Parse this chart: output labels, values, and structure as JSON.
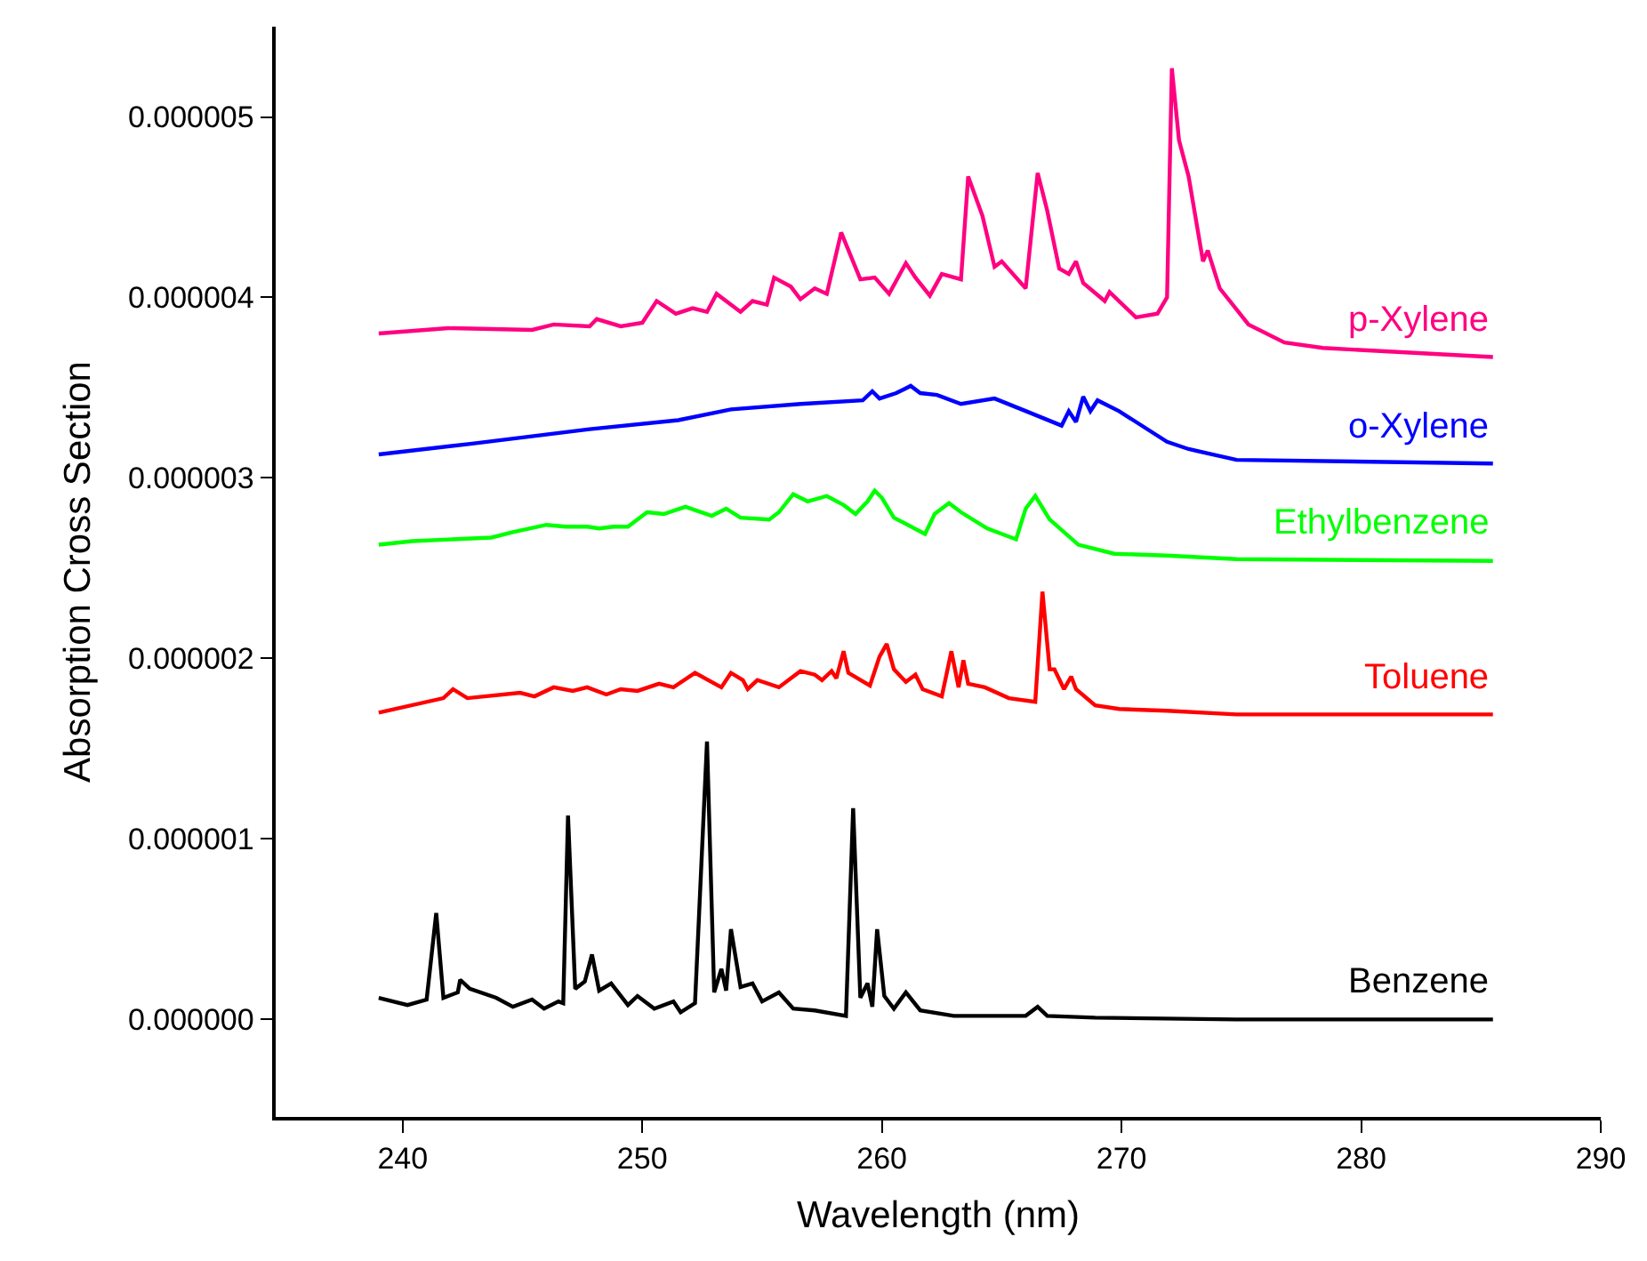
{
  "chart_data": {
    "type": "line",
    "xlabel": "Wavelength (nm)",
    "ylabel": "Absorption Cross Section",
    "xlim": [
      234.7,
      290
    ],
    "xticks": [
      240,
      250,
      260,
      270,
      280,
      290
    ],
    "ylim": [
      -5.4e-07,
      5.5e-06
    ],
    "yticks": [
      {
        "value": 0,
        "label": "0.000000"
      },
      {
        "value": 1e-06,
        "label": "0.000001"
      },
      {
        "value": 2e-06,
        "label": "0.000002"
      },
      {
        "value": 3e-06,
        "label": "0.000003"
      },
      {
        "value": 4e-06,
        "label": "0.000004"
      },
      {
        "value": 5e-06,
        "label": "0.000005"
      }
    ],
    "legend": false,
    "marker": "none",
    "line_style": "solid",
    "series": [
      {
        "name": "p-Xylene",
        "color": "#ff0080",
        "x": [
          239.0,
          241.9,
          245.4,
          246.3,
          247.8,
          248.1,
          249.1,
          250.0,
          250.6,
          251.4,
          252.1,
          252.7,
          253.1,
          254.1,
          254.6,
          255.2,
          255.5,
          256.2,
          256.6,
          257.2,
          257.7,
          258.3,
          259.1,
          259.7,
          260.3,
          261.0,
          261.4,
          262.0,
          262.5,
          263.3,
          263.6,
          264.2,
          264.7,
          265.0,
          266.0,
          266.5,
          266.9,
          267.4,
          267.8,
          268.1,
          268.4,
          269.3,
          269.5,
          270.6,
          271.5,
          271.9,
          272.1,
          272.4,
          272.8,
          273.4,
          273.6,
          274.1,
          275.3,
          276.8,
          278.4,
          285.5
        ],
        "values": [
          3.8e-06,
          3.83e-06,
          3.82e-06,
          3.85e-06,
          3.84e-06,
          3.88e-06,
          3.84e-06,
          3.86e-06,
          3.98e-06,
          3.91e-06,
          3.94e-06,
          3.92e-06,
          4.02e-06,
          3.92e-06,
          3.98e-06,
          3.96e-06,
          4.11e-06,
          4.06e-06,
          3.99e-06,
          4.05e-06,
          4.02e-06,
          4.36e-06,
          4.1e-06,
          4.11e-06,
          4.02e-06,
          4.19e-06,
          4.11e-06,
          4.01e-06,
          4.13e-06,
          4.1e-06,
          4.67e-06,
          4.45e-06,
          4.17e-06,
          4.2e-06,
          4.05e-06,
          4.69e-06,
          4.48e-06,
          4.16e-06,
          4.13e-06,
          4.2e-06,
          4.08e-06,
          3.98e-06,
          4.03e-06,
          3.89e-06,
          3.91e-06,
          4e-06,
          5.27e-06,
          4.87e-06,
          4.67e-06,
          4.2e-06,
          4.26e-06,
          4.05e-06,
          3.85e-06,
          3.75e-06,
          3.72e-06,
          3.67e-06
        ]
      },
      {
        "name": "o-Xylene",
        "color": "#0000ff",
        "x": [
          239.0,
          242.9,
          247.8,
          251.5,
          253.7,
          256.6,
          259.2,
          259.6,
          259.9,
          260.6,
          261.2,
          261.6,
          262.3,
          263.3,
          264.7,
          266.2,
          267.5,
          267.8,
          268.1,
          268.4,
          268.7,
          269.0,
          269.9,
          271.9,
          272.8,
          274.8,
          285.5
        ],
        "values": [
          3.13e-06,
          3.19e-06,
          3.27e-06,
          3.32e-06,
          3.38e-06,
          3.41e-06,
          3.43e-06,
          3.48e-06,
          3.44e-06,
          3.47e-06,
          3.51e-06,
          3.47e-06,
          3.46e-06,
          3.41e-06,
          3.44e-06,
          3.36e-06,
          3.29e-06,
          3.37e-06,
          3.31e-06,
          3.45e-06,
          3.37e-06,
          3.43e-06,
          3.37e-06,
          3.2e-06,
          3.16e-06,
          3.1e-06,
          3.08e-06
        ]
      },
      {
        "name": "Ethylbenzene",
        "color": "#00ff00",
        "x": [
          239.0,
          240.4,
          243.7,
          244.6,
          246.0,
          246.8,
          247.7,
          248.2,
          248.8,
          249.4,
          250.2,
          250.9,
          251.8,
          252.9,
          253.5,
          254.1,
          255.3,
          255.7,
          256.3,
          256.9,
          257.7,
          258.4,
          258.9,
          259.4,
          259.7,
          260.0,
          260.5,
          261.8,
          262.2,
          262.8,
          263.3,
          264.4,
          265.6,
          266.0,
          266.4,
          267.0,
          268.2,
          269.7,
          271.9,
          274.8,
          285.5
        ],
        "values": [
          2.63e-06,
          2.65e-06,
          2.67e-06,
          2.7e-06,
          2.74e-06,
          2.73e-06,
          2.73e-06,
          2.72e-06,
          2.73e-06,
          2.73e-06,
          2.81e-06,
          2.8e-06,
          2.84e-06,
          2.79e-06,
          2.83e-06,
          2.78e-06,
          2.77e-06,
          2.81e-06,
          2.91e-06,
          2.87e-06,
          2.9e-06,
          2.85e-06,
          2.8e-06,
          2.87e-06,
          2.93e-06,
          2.89e-06,
          2.78e-06,
          2.69e-06,
          2.8e-06,
          2.86e-06,
          2.81e-06,
          2.72e-06,
          2.66e-06,
          2.83e-06,
          2.9e-06,
          2.77e-06,
          2.63e-06,
          2.58e-06,
          2.57e-06,
          2.55e-06,
          2.54e-06
        ]
      },
      {
        "name": "Toluene",
        "color": "#ff0000",
        "x": [
          239.0,
          241.7,
          242.1,
          242.7,
          244.9,
          245.5,
          246.3,
          247.1,
          247.7,
          248.5,
          249.1,
          249.8,
          250.7,
          251.3,
          252.2,
          253.3,
          253.7,
          254.2,
          254.4,
          254.8,
          255.7,
          256.6,
          257.2,
          257.5,
          257.9,
          258.1,
          258.4,
          258.6,
          259.5,
          259.9,
          260.2,
          260.5,
          261.0,
          261.4,
          261.7,
          262.5,
          262.9,
          263.2,
          263.4,
          263.6,
          264.3,
          265.3,
          266.4,
          266.7,
          267.0,
          267.2,
          267.6,
          267.9,
          268.1,
          268.9,
          269.9,
          271.9,
          274.8,
          285.5
        ],
        "values": [
          1.7e-06,
          1.78e-06,
          1.83e-06,
          1.78e-06,
          1.81e-06,
          1.79e-06,
          1.84e-06,
          1.82e-06,
          1.84e-06,
          1.8e-06,
          1.83e-06,
          1.82e-06,
          1.86e-06,
          1.84e-06,
          1.92e-06,
          1.84e-06,
          1.92e-06,
          1.88e-06,
          1.83e-06,
          1.88e-06,
          1.84e-06,
          1.93e-06,
          1.91e-06,
          1.88e-06,
          1.93e-06,
          1.89e-06,
          2.04e-06,
          1.92e-06,
          1.85e-06,
          2.01e-06,
          2.08e-06,
          1.94e-06,
          1.87e-06,
          1.91e-06,
          1.83e-06,
          1.79e-06,
          2.04e-06,
          1.84e-06,
          1.99e-06,
          1.86e-06,
          1.84e-06,
          1.78e-06,
          1.76e-06,
          2.37e-06,
          1.94e-06,
          1.94e-06,
          1.83e-06,
          1.9e-06,
          1.83e-06,
          1.74e-06,
          1.72e-06,
          1.71e-06,
          1.69e-06,
          1.69e-06
        ]
      },
      {
        "name": "Benzene",
        "color": "#000000",
        "x": [
          239.0,
          240.2,
          241.0,
          241.4,
          241.7,
          242.3,
          242.4,
          242.8,
          243.9,
          244.6,
          245.4,
          245.9,
          246.5,
          246.7,
          246.9,
          247.2,
          247.6,
          247.9,
          248.2,
          248.7,
          249.4,
          249.8,
          250.5,
          251.3,
          251.6,
          252.2,
          252.7,
          253.0,
          253.3,
          253.5,
          253.7,
          254.1,
          254.6,
          255.0,
          255.7,
          256.3,
          257.2,
          258.5,
          258.8,
          259.1,
          259.4,
          259.6,
          259.8,
          260.1,
          260.5,
          261.0,
          261.6,
          263.0,
          266.0,
          266.5,
          266.9,
          268.9,
          274.8,
          285.5
        ],
        "values": [
          1.2e-07,
          8e-08,
          1.1e-07,
          5.9e-07,
          1.2e-07,
          1.5e-07,
          2.2e-07,
          1.7e-07,
          1.2e-07,
          7e-08,
          1.1e-07,
          6e-08,
          1e-07,
          9e-08,
          1.13e-06,
          1.7e-07,
          2.1e-07,
          3.6e-07,
          1.6e-07,
          2e-07,
          8e-08,
          1.3e-07,
          6e-08,
          1e-07,
          4e-08,
          9e-08,
          1.54e-06,
          1.5e-07,
          2.8e-07,
          1.6e-07,
          5e-07,
          1.8e-07,
          2e-07,
          1e-07,
          1.5e-07,
          6e-08,
          5e-08,
          2e-08,
          1.17e-06,
          1.2e-07,
          2e-07,
          7e-08,
          5e-07,
          1.3e-07,
          6e-08,
          1.5e-07,
          5e-08,
          2e-08,
          2e-08,
          7e-08,
          2e-08,
          1e-08,
          0,
          0
        ]
      }
    ]
  }
}
